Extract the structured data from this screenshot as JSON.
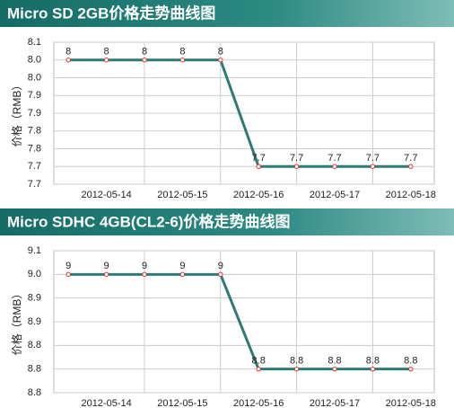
{
  "chart_data": [
    {
      "type": "line",
      "title": "Micro SD 2GB价格走势曲线图",
      "y_label": "价格（RMB）",
      "categories": [
        null,
        "2012-05-14",
        null,
        "2012-05-15",
        null,
        "2012-05-16",
        null,
        "2012-05-17",
        null,
        "2012-05-18"
      ],
      "series": [
        {
          "name": "Micro SD 2GB",
          "color": "#2e7b76",
          "values": [
            8,
            8,
            8,
            8,
            8,
            7.7,
            7.7,
            7.7,
            7.7,
            7.7
          ]
        }
      ],
      "ylim": [
        7.65,
        8.05
      ],
      "yticks": [
        {
          "value": 8.05,
          "label": "8.1"
        },
        {
          "value": 8.0,
          "label": "8.0"
        },
        {
          "value": 7.95,
          "label": "8.0"
        },
        {
          "value": 7.9,
          "label": "7.9"
        },
        {
          "value": 7.85,
          "label": "7.9"
        },
        {
          "value": 7.8,
          "label": "7.8"
        },
        {
          "value": 7.75,
          "label": "7.8"
        },
        {
          "value": 7.7,
          "label": "7.7"
        },
        {
          "value": 7.65,
          "label": "7.7"
        }
      ],
      "grid": true
    },
    {
      "type": "line",
      "title": "Micro SDHC 4GB(CL2-6)价格走势曲线图",
      "y_label": "价格（RMB）",
      "categories": [
        null,
        "2012-05-14",
        null,
        "2012-05-15",
        null,
        "2012-05-16",
        null,
        "2012-05-17",
        null,
        "2012-05-18"
      ],
      "series": [
        {
          "name": "Micro SDHC 4GB(CL2-6)",
          "color": "#2e7b76",
          "values": [
            9,
            9,
            9,
            9,
            9,
            8.8,
            8.8,
            8.8,
            8.8,
            8.8
          ]
        }
      ],
      "ylim": [
        8.75,
        9.05
      ],
      "yticks": [
        {
          "value": 9.05,
          "label": "9.1"
        },
        {
          "value": 9.0,
          "label": "9.0"
        },
        {
          "value": 8.95,
          "label": "8.9"
        },
        {
          "value": 8.9,
          "label": "8.9"
        },
        {
          "value": 8.85,
          "label": "8.8"
        },
        {
          "value": 8.8,
          "label": "8.8"
        },
        {
          "value": 8.75,
          "label": "8.8"
        }
      ],
      "grid": true
    }
  ]
}
